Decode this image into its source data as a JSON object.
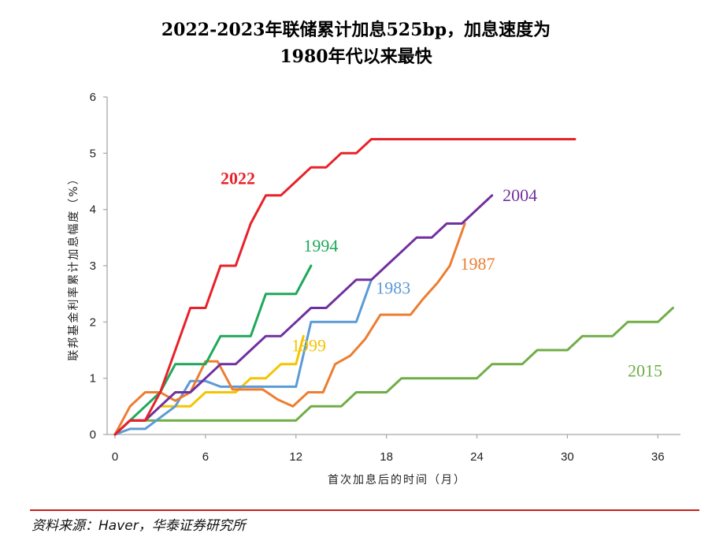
{
  "title_line1": "2022-2023年联储累计加息525bp，加息速度为",
  "title_line2": "1980年代以来最快",
  "source": "资料来源：Haver，华泰证券研究所",
  "chart_data": {
    "type": "line",
    "xlabel": "首次加息后的时间（月）",
    "ylabel": "联邦基金利率累计加息幅度（%）",
    "xlim": [
      0,
      37.5
    ],
    "ylim": [
      0,
      6
    ],
    "xticks": [
      0,
      6,
      12,
      18,
      24,
      30,
      36
    ],
    "yticks": [
      0,
      1,
      2,
      3,
      4,
      5,
      6
    ],
    "series": [
      {
        "name": "2022",
        "color": "#e8212a",
        "label_at": [
          7.0,
          4.45
        ],
        "label_bold": true,
        "points": [
          [
            0,
            0
          ],
          [
            1,
            0.25
          ],
          [
            2,
            0.25
          ],
          [
            3,
            0.75
          ],
          [
            4,
            1.5
          ],
          [
            5,
            2.25
          ],
          [
            6,
            2.25
          ],
          [
            7,
            3.0
          ],
          [
            8,
            3.0
          ],
          [
            9,
            3.75
          ],
          [
            10,
            4.25
          ],
          [
            11,
            4.25
          ],
          [
            12,
            4.5
          ],
          [
            13,
            4.75
          ],
          [
            14,
            4.75
          ],
          [
            15,
            5.0
          ],
          [
            16,
            5.0
          ],
          [
            17,
            5.25
          ],
          [
            18,
            5.25
          ],
          [
            30.5,
            5.25
          ]
        ]
      },
      {
        "name": "2004",
        "color": "#7030a0",
        "label_at": [
          25.7,
          4.15
        ],
        "points": [
          [
            0,
            0
          ],
          [
            1,
            0.25
          ],
          [
            2,
            0.25
          ],
          [
            3,
            0.5
          ],
          [
            4,
            0.75
          ],
          [
            5,
            0.75
          ],
          [
            6,
            1.0
          ],
          [
            7,
            1.25
          ],
          [
            8,
            1.25
          ],
          [
            9,
            1.5
          ],
          [
            10,
            1.75
          ],
          [
            11,
            1.75
          ],
          [
            12,
            2.0
          ],
          [
            13,
            2.25
          ],
          [
            14,
            2.25
          ],
          [
            15,
            2.5
          ],
          [
            16,
            2.75
          ],
          [
            17,
            2.75
          ],
          [
            18,
            3.0
          ],
          [
            19,
            3.25
          ],
          [
            20,
            3.5
          ],
          [
            21,
            3.5
          ],
          [
            22,
            3.75
          ],
          [
            23,
            3.75
          ],
          [
            24,
            4.0
          ],
          [
            25,
            4.25
          ]
        ]
      },
      {
        "name": "1994",
        "color": "#1ea85a",
        "label_at": [
          12.5,
          3.25
        ],
        "points": [
          [
            0,
            0
          ],
          [
            1,
            0.25
          ],
          [
            2,
            0.5
          ],
          [
            3,
            0.75
          ],
          [
            4,
            1.25
          ],
          [
            5,
            1.25
          ],
          [
            6,
            1.25
          ],
          [
            7,
            1.75
          ],
          [
            8,
            1.75
          ],
          [
            9,
            1.75
          ],
          [
            10,
            2.5
          ],
          [
            11,
            2.5
          ],
          [
            12,
            2.5
          ],
          [
            13,
            3.0
          ]
        ]
      },
      {
        "name": "1987",
        "color": "#ed7d31",
        "label_at": [
          22.9,
          2.93
        ],
        "points": [
          [
            0,
            0
          ],
          [
            1,
            0.5
          ],
          [
            2,
            0.75
          ],
          [
            3,
            0.75
          ],
          [
            4,
            0.6
          ],
          [
            5,
            0.75
          ],
          [
            6,
            1.3
          ],
          [
            6.8,
            1.3
          ],
          [
            7.8,
            0.8
          ],
          [
            8.8,
            0.8
          ],
          [
            9.8,
            0.8
          ],
          [
            10.8,
            0.62
          ],
          [
            11.8,
            0.5
          ],
          [
            12.8,
            0.75
          ],
          [
            13.8,
            0.75
          ],
          [
            14.6,
            1.25
          ],
          [
            15.6,
            1.4
          ],
          [
            16.6,
            1.7
          ],
          [
            17.6,
            2.13
          ],
          [
            18.6,
            2.13
          ],
          [
            19.6,
            2.13
          ],
          [
            20.4,
            2.4
          ],
          [
            21.4,
            2.7
          ],
          [
            22.2,
            3.0
          ],
          [
            23.2,
            3.75
          ]
        ]
      },
      {
        "name": "1983",
        "color": "#5b9bd5",
        "label_at": [
          17.3,
          2.5
        ],
        "points": [
          [
            0,
            0
          ],
          [
            1,
            0.1
          ],
          [
            2,
            0.1
          ],
          [
            3,
            0.3
          ],
          [
            4,
            0.5
          ],
          [
            5,
            0.95
          ],
          [
            6,
            0.95
          ],
          [
            7,
            0.85
          ],
          [
            8,
            0.85
          ],
          [
            9,
            0.85
          ],
          [
            10,
            0.85
          ],
          [
            11,
            0.85
          ],
          [
            12,
            0.85
          ],
          [
            13,
            2.0
          ],
          [
            14,
            2.0
          ],
          [
            15,
            2.0
          ],
          [
            16,
            2.0
          ],
          [
            17,
            2.75
          ]
        ]
      },
      {
        "name": "1999",
        "color": "#f5c400",
        "label_at": [
          11.7,
          1.48
        ],
        "points": [
          [
            0,
            0
          ],
          [
            1,
            0.25
          ],
          [
            2,
            0.25
          ],
          [
            3,
            0.5
          ],
          [
            4,
            0.5
          ],
          [
            5,
            0.5
          ],
          [
            6,
            0.75
          ],
          [
            7,
            0.75
          ],
          [
            8,
            0.75
          ],
          [
            9,
            1.0
          ],
          [
            10,
            1.0
          ],
          [
            11,
            1.25
          ],
          [
            12,
            1.25
          ],
          [
            12.5,
            1.75
          ]
        ]
      },
      {
        "name": "2015",
        "color": "#70ad47",
        "label_at": [
          34.0,
          1.03
        ],
        "points": [
          [
            0,
            0
          ],
          [
            1,
            0.25
          ],
          [
            12,
            0.25
          ],
          [
            13,
            0.5
          ],
          [
            15,
            0.5
          ],
          [
            16,
            0.75
          ],
          [
            18,
            0.75
          ],
          [
            19,
            1.0
          ],
          [
            24,
            1.0
          ],
          [
            25,
            1.25
          ],
          [
            27,
            1.25
          ],
          [
            28,
            1.5
          ],
          [
            30,
            1.5
          ],
          [
            31,
            1.75
          ],
          [
            33,
            1.75
          ],
          [
            34,
            2.0
          ],
          [
            36,
            2.0
          ],
          [
            37,
            2.25
          ]
        ]
      }
    ]
  }
}
